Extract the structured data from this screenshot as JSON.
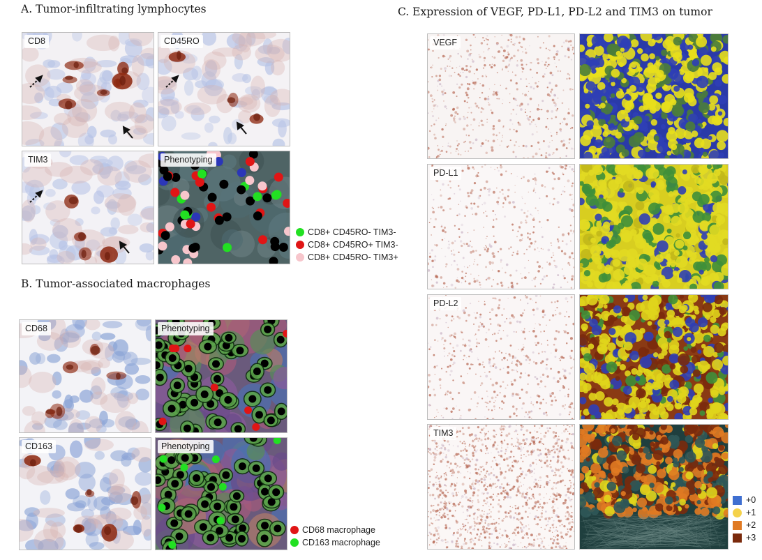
{
  "panel_a": {
    "title": "A. Tumor-infiltrating lymphocytes",
    "tiles": [
      "CD8",
      "CD45RO",
      "TIM3",
      "Phenotyping"
    ],
    "legend": [
      {
        "label": "CD8+ CD45RO- TIM3-",
        "color": "#22e022"
      },
      {
        "label": "CD8+ CD45RO+ TIM3-",
        "color": "#e01515"
      },
      {
        "label": "CD8+ CD45RO- TIM3+",
        "color": "#f7c6cc"
      }
    ]
  },
  "panel_b": {
    "title": "B. Tumor-associated macrophages",
    "tiles": [
      "CD68",
      "Phenotyping",
      "CD163",
      "Phenotyping"
    ],
    "legend": [
      {
        "label": "CD68 macrophage",
        "color": "#e01515"
      },
      {
        "label": "CD163 macrophage",
        "color": "#22e022"
      }
    ]
  },
  "panel_c": {
    "title": "C. Expression of VEGF, PD-L1, PD-L2 and TIM3 on tumor",
    "tiles": [
      "VEGF",
      "PD-L1",
      "PD-L2",
      "TIM3"
    ],
    "legend": [
      {
        "label": "+0",
        "color": "#3f6fd1"
      },
      {
        "label": "+1",
        "color": "#f5d24a"
      },
      {
        "label": "+2",
        "color": "#e07a22"
      },
      {
        "label": "+3",
        "color": "#7a2a0c"
      }
    ]
  },
  "colors": {
    "stain_brown": "#8e2a12",
    "nucleus_blue": "#9fb1d8",
    "marker_yellow": "#e6e01a",
    "marker_blue": "#2b36b8",
    "stroma_green": "#4a7d3c"
  }
}
